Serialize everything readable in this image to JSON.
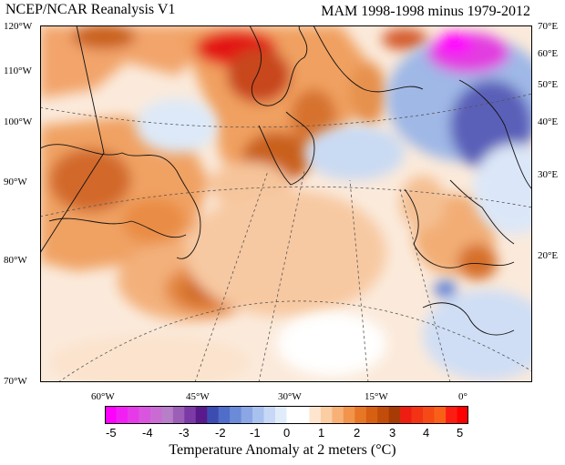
{
  "header": {
    "dataset": "NCEP/NCAR Reanalysis V1",
    "period": "MAM 1998-1998 minus 1979-2012"
  },
  "map": {
    "left_lat_labels": [
      "120°W",
      "110°W",
      "100°W",
      "90°W",
      "80°W",
      "70°W"
    ],
    "right_lat_labels": [
      "70°E",
      "60°E",
      "50°E",
      "40°E",
      "30°E",
      "20°E"
    ],
    "bottom_lon_labels": [
      "60°W",
      "45°W",
      "30°W",
      "15°W",
      "0°"
    ]
  },
  "colorbar": {
    "ticks": [
      "-5",
      "-4",
      "-3",
      "-2",
      "-1",
      "0",
      "1",
      "2",
      "3",
      "4",
      "5"
    ],
    "colors": [
      "#ff00ff",
      "#f21ff4",
      "#e63ae9",
      "#d955dd",
      "#c96bd2",
      "#b77fc7",
      "#9b5fb8",
      "#7b3aa5",
      "#5b1a8c",
      "#3b4db0",
      "#4f6dc9",
      "#6b8ad8",
      "#8aa6e4",
      "#a9c1ee",
      "#c6d8f6",
      "#e1ecfb",
      "#ffffff",
      "#ffffff",
      "#fde5cf",
      "#fbcda3",
      "#f7b176",
      "#f2944b",
      "#e77727",
      "#d75f12",
      "#c24c0a",
      "#a83a06",
      "#ee1d12",
      "#f23414",
      "#f54a16",
      "#f86018",
      "#fb1c12",
      "#ff0000"
    ],
    "label": "Temperature Anomaly at 2 meters (°C)"
  }
}
